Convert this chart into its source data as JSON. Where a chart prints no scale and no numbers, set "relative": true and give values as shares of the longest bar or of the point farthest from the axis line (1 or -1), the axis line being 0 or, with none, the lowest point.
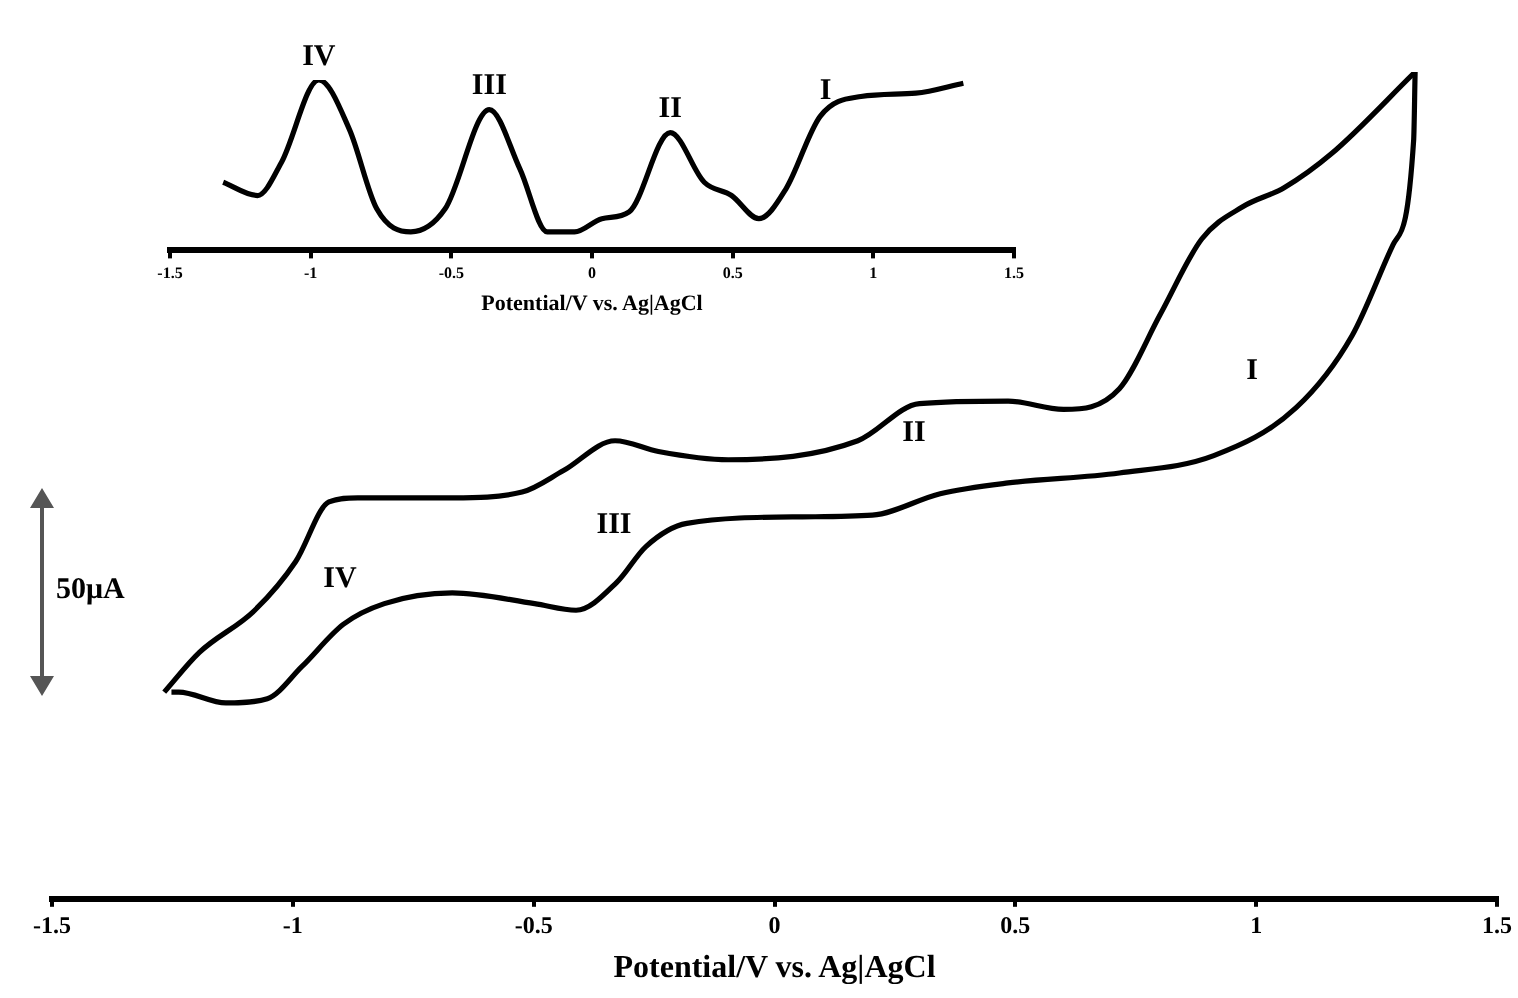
{
  "chart_data": [
    {
      "type": "line",
      "xlabel": "Potential/V vs. Ag|AgCl",
      "relative": true,
      "tick_labels": "x",
      "marker": "none",
      "line_style": "solid",
      "xlim": [
        -1.5,
        1.5
      ],
      "xticks": [
        -1.5,
        -1,
        -0.5,
        0,
        0.5,
        1,
        1.5
      ],
      "series": [
        {
          "color": "#000000",
          "x": [
            -1.267,
            -1.194,
            -1.079,
            -0.994,
            -0.925,
            -0.865,
            -0.669,
            -0.524,
            -0.438,
            -0.331,
            -0.241,
            -0.096,
            0.173,
            0.301,
            0.485,
            0.6,
            0.716,
            0.801,
            0.887,
            0.972,
            1.058,
            1.156,
            1.33
          ],
          "values": [
            0.25,
            0.298,
            0.349,
            0.408,
            0.48,
            0.485,
            0.485,
            0.492,
            0.518,
            0.554,
            0.541,
            0.531,
            0.554,
            0.599,
            0.602,
            0.592,
            0.617,
            0.707,
            0.798,
            0.837,
            0.86,
            0.901,
            1.0
          ]
        },
        {
          "color": "#000000",
          "x": [
            -1.252,
            -1.237,
            -1.139,
            -1.053,
            -0.981,
            -0.895,
            -0.81,
            -0.669,
            -0.498,
            -0.412,
            -0.327,
            -0.267,
            -0.182,
            0.058,
            0.203,
            0.344,
            0.485,
            0.716,
            0.912,
            1.083,
            1.199,
            1.284,
            1.327,
            1.33
          ],
          "values": [
            0.25,
            0.25,
            0.237,
            0.242,
            0.281,
            0.332,
            0.357,
            0.37,
            0.357,
            0.349,
            0.383,
            0.426,
            0.454,
            0.462,
            0.464,
            0.49,
            0.503,
            0.515,
            0.536,
            0.594,
            0.681,
            0.791,
            0.918,
            1.0
          ]
        }
      ],
      "annotations": [
        "I",
        "II",
        "III",
        "IV",
        "50μA"
      ]
    },
    {
      "type": "line",
      "xlabel": "Potential/V vs. Ag|AgCl",
      "relative": true,
      "tick_labels": "x",
      "marker": "none",
      "line_style": "solid",
      "xlim": [
        -1.5,
        1.5
      ],
      "xticks": [
        -1.5,
        -1,
        -0.5,
        0,
        0.5,
        1,
        1.5
      ],
      "series": [
        {
          "color": "#000000",
          "x": [
            -1.311,
            -1.189,
            -1.104,
            -0.971,
            -0.862,
            -0.765,
            -0.644,
            -0.522,
            -0.365,
            -0.256,
            -0.159,
            -0.062,
            0.035,
            0.132,
            0.278,
            0.399,
            0.496,
            0.593,
            0.689,
            0.811,
            0.956,
            1.151,
            1.32
          ],
          "values": [
            0.4,
            0.322,
            0.516,
            1.0,
            0.709,
            0.244,
            0.109,
            0.244,
            0.826,
            0.477,
            0.109,
            0.109,
            0.186,
            0.226,
            0.691,
            0.4,
            0.322,
            0.186,
            0.36,
            0.787,
            0.903,
            0.923,
            0.981
          ]
        }
      ],
      "annotations": [
        {
          "text": "IV",
          "x": -0.971,
          "y": 1.0
        },
        {
          "text": "III",
          "x": -0.365,
          "y": 0.826
        },
        {
          "text": "II",
          "x": 0.278,
          "y": 0.691
        },
        {
          "text": "I",
          "x": 0.83,
          "y": 0.8
        }
      ]
    }
  ]
}
